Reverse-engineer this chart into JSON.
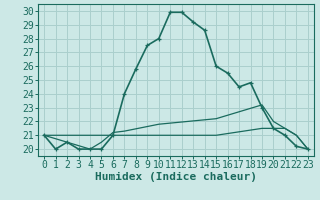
{
  "xlabel": "Humidex (Indice chaleur)",
  "background_color": "#cce8e6",
  "grid_color": "#aacfcd",
  "line_color": "#1a6b5e",
  "xlim": [
    -0.5,
    23.5
  ],
  "ylim": [
    19.5,
    30.5
  ],
  "xticks": [
    0,
    1,
    2,
    3,
    4,
    5,
    6,
    7,
    8,
    9,
    10,
    11,
    12,
    13,
    14,
    15,
    16,
    17,
    18,
    19,
    20,
    21,
    22,
    23
  ],
  "yticks": [
    20,
    21,
    22,
    23,
    24,
    25,
    26,
    27,
    28,
    29,
    30
  ],
  "series_main": {
    "x": [
      0,
      1,
      2,
      3,
      4,
      5,
      6,
      7,
      8,
      9,
      10,
      11,
      12,
      13,
      14,
      15,
      16,
      17,
      18,
      19,
      20,
      21,
      22,
      23
    ],
    "y": [
      21,
      20,
      20.5,
      20,
      20,
      20,
      21,
      24,
      25.8,
      27.5,
      28,
      29.9,
      29.9,
      29.2,
      28.6,
      26,
      25.5,
      24.5,
      24.8,
      23,
      21.5,
      21,
      20.2,
      20
    ]
  },
  "series_flat": {
    "x": [
      0,
      10,
      15,
      19,
      21,
      22,
      23
    ],
    "y": [
      21,
      21,
      21,
      21.5,
      21.5,
      21,
      20
    ]
  },
  "series_curved": {
    "x": [
      0,
      2,
      4,
      5,
      6,
      7,
      10,
      15,
      19,
      20,
      21,
      22,
      23
    ],
    "y": [
      21,
      20.5,
      20,
      20.5,
      21.2,
      21.3,
      21.8,
      22.2,
      23.2,
      22,
      21.5,
      21,
      20
    ]
  },
  "font_size": 7,
  "xlabel_fontsize": 8
}
